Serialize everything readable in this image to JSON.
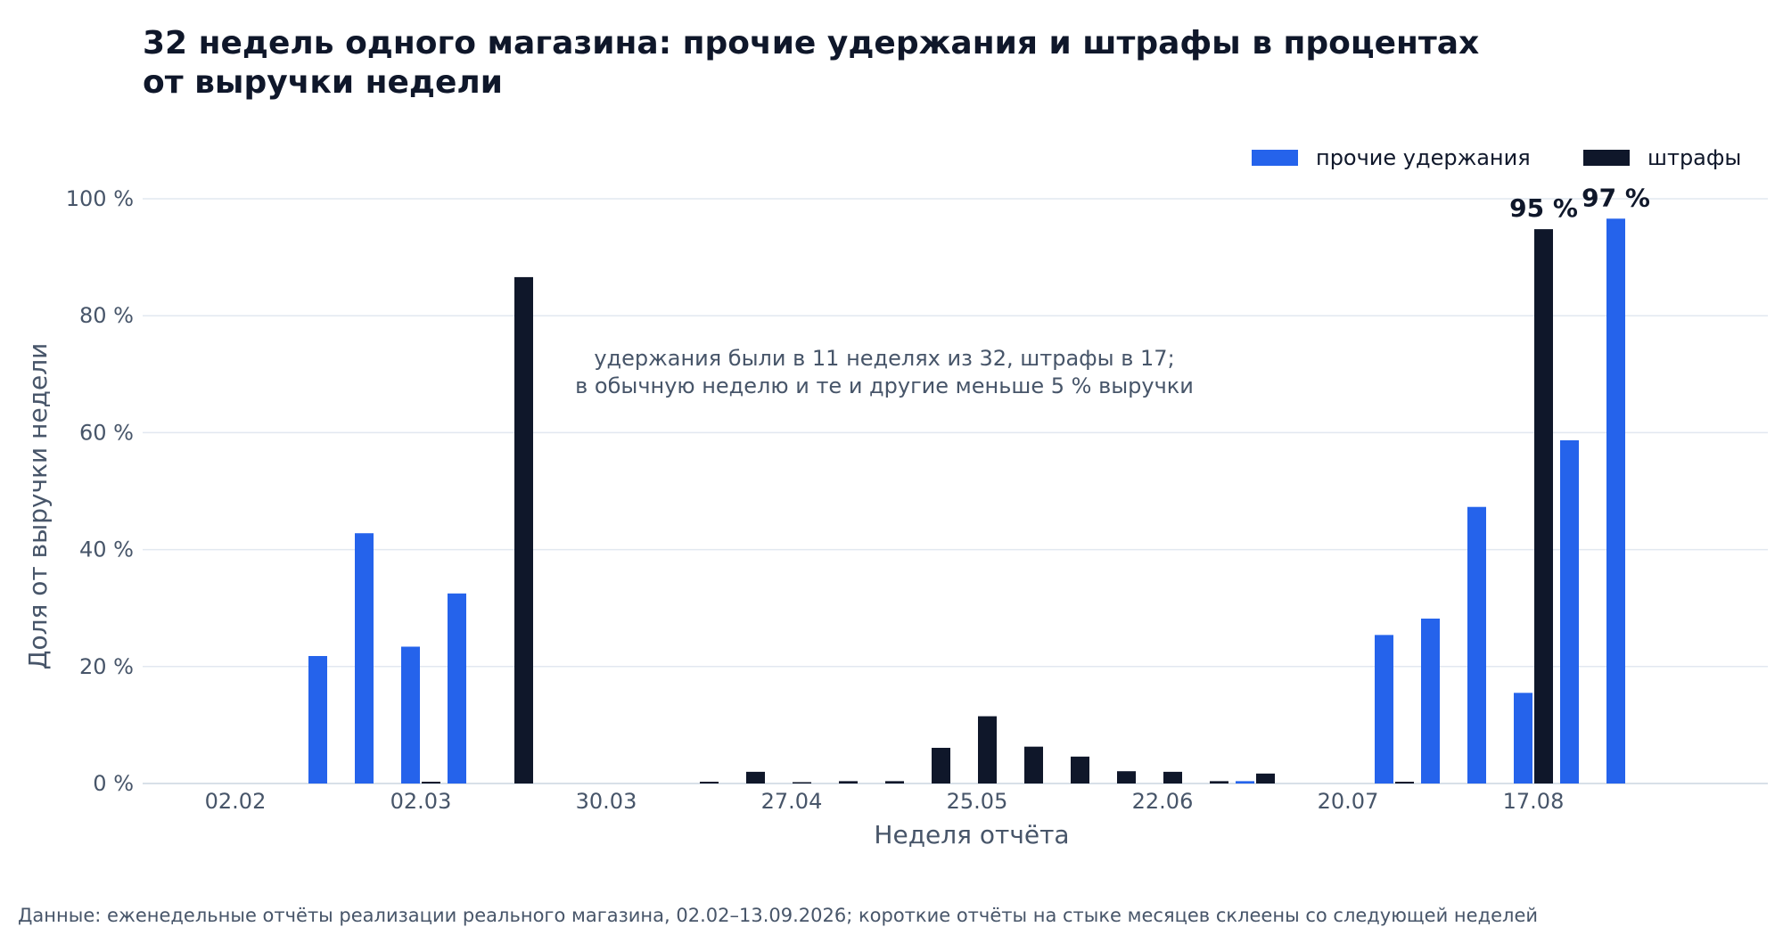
{
  "chart_data": {
    "type": "bar",
    "title_lines": [
      "32 недель одного магазина: прочие удержания и штрафы в процентах",
      "от выручки недели"
    ],
    "xlabel": "Неделя отчёта",
    "ylabel": "Доля от выручки недели",
    "ylim": [
      0,
      100
    ],
    "y_ticks": [
      0,
      20,
      40,
      60,
      80,
      100
    ],
    "y_tick_labels": [
      "0 %",
      "20 %",
      "40 %",
      "60 %",
      "80 %",
      "100 %"
    ],
    "x_ticks": [
      "02.02",
      "02.03",
      "30.03",
      "27.04",
      "25.05",
      "22.06",
      "20.07",
      "17.08"
    ],
    "x_tick_week_index": [
      0,
      4,
      8,
      12,
      16,
      20,
      24,
      28
    ],
    "grid": true,
    "legend_placement": "top-right",
    "series": [
      {
        "name": "прочие удержания",
        "color": "#2563eb",
        "values": [
          0,
          0,
          21.8,
          42.8,
          23.4,
          32.5,
          0,
          0,
          0,
          0,
          0,
          0,
          0,
          0,
          0,
          0,
          0,
          0,
          0,
          0,
          0,
          0,
          0.4,
          0,
          0,
          25.4,
          28.2,
          47.3,
          15.5,
          58.7,
          96.6,
          0
        ]
      },
      {
        "name": "штрафы",
        "color": "#0f172a",
        "values": [
          0,
          0,
          0,
          0,
          0.3,
          0,
          86.6,
          0,
          0,
          0,
          0.3,
          2.0,
          0.2,
          0.4,
          0.4,
          6.1,
          11.5,
          6.3,
          4.6,
          2.1,
          2.0,
          0.4,
          1.7,
          0,
          0,
          0.3,
          0,
          0,
          94.8,
          0,
          0,
          0
        ]
      }
    ],
    "value_labels": [
      {
        "series": 1,
        "index": 28,
        "text": "95 %"
      },
      {
        "series": 0,
        "index": 30,
        "text": "97 %"
      }
    ],
    "annotation_lines": [
      "удержания были в 11 неделях из 32, штрафы в 17;",
      "в обычную неделю и те и другие меньше 5 % выручки"
    ],
    "source": "Данные: еженедельные отчёты реализации реального магазина, 02.02–13.09.2026; короткие отчёты на стыке месяцев склеены со следующей неделей"
  }
}
